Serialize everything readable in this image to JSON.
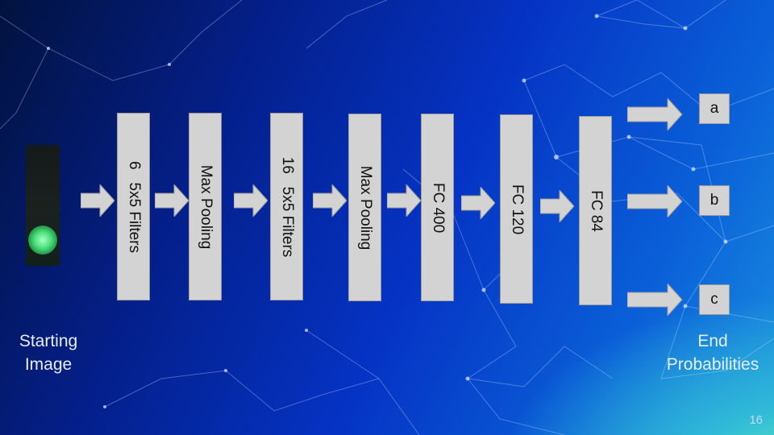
{
  "layers": [
    "6   5x5 Filters",
    "Max Pooling",
    "16   5x5 Filters",
    "Max Pooling",
    "FC 400",
    "FC 120",
    "FC 84"
  ],
  "outputs": [
    "a",
    "b",
    "c"
  ],
  "start_label": [
    "Starting",
    "Image"
  ],
  "end_label": [
    "End",
    "Probabilities"
  ],
  "page_number": "16"
}
